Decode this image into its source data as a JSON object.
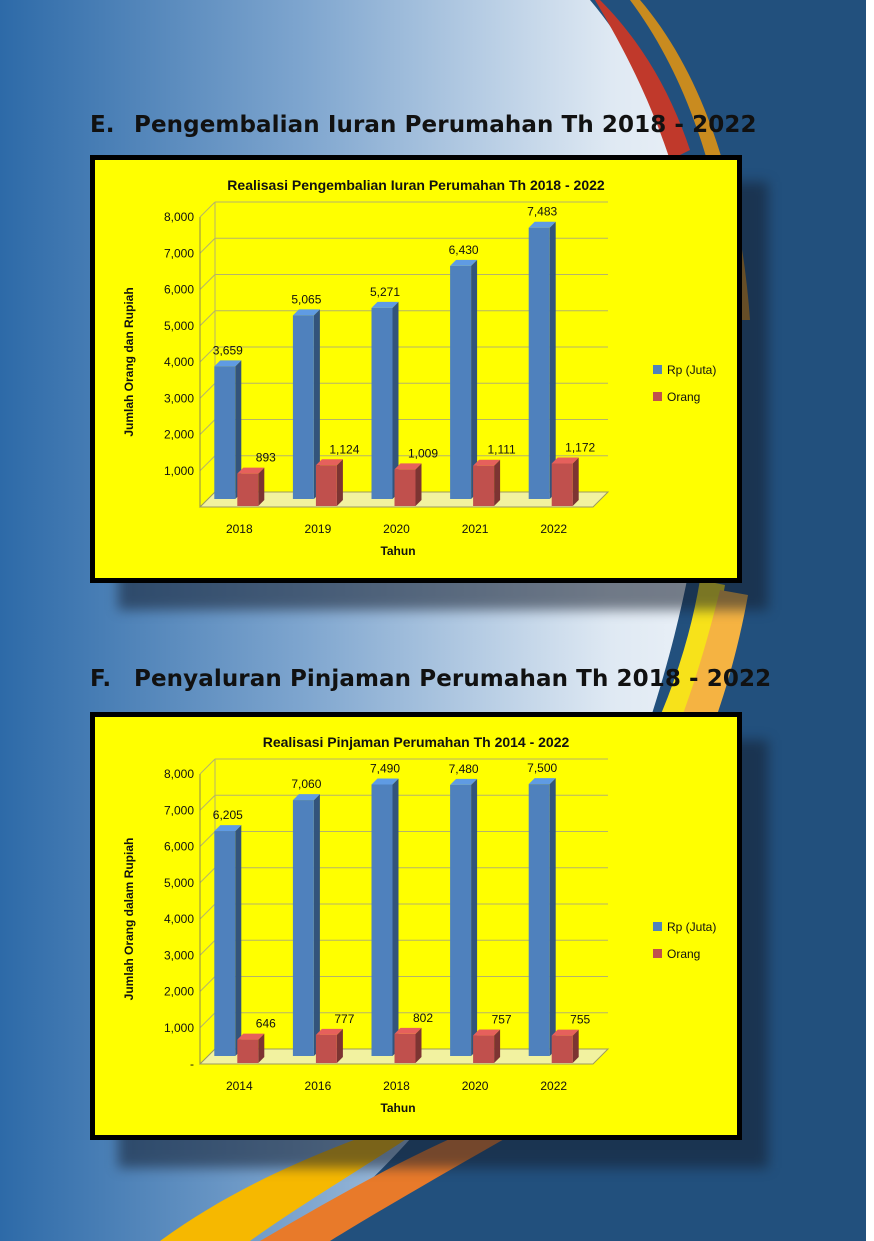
{
  "headings": {
    "e_letter": "E.",
    "e_text": "Pengembalian Iuran Perumahan Th 2018 - 2022",
    "f_letter": "F.",
    "f_text": "Penyaluran Pinjaman Perumahan Th 2018 - 2022"
  },
  "colors": {
    "chart_background": "#ffff00",
    "rp_series": "#4f81bd",
    "orang_series": "#c0504d",
    "gridline": "#b5b36a"
  },
  "chart_data": [
    {
      "type": "bar",
      "title": "Realisasi Pengembalian Iuran Perumahan Th 2018 - 2022",
      "xlabel": "Tahun",
      "ylabel": "Jumlah Orang dan Rupiah",
      "categories": [
        "2018",
        "2019",
        "2020",
        "2021",
        "2022"
      ],
      "series": [
        {
          "name": "Rp (Juta)",
          "values": [
            3659,
            5065,
            5271,
            6430,
            7483
          ],
          "labels": [
            "3,659",
            "5,065",
            "5,271",
            "6,430",
            "7,483"
          ]
        },
        {
          "name": "Orang",
          "values": [
            893,
            1124,
            1009,
            1111,
            1172
          ],
          "labels": [
            "893",
            "1,124",
            "1,009",
            "1,111",
            "1,172"
          ]
        }
      ],
      "ylim": [
        0,
        8000
      ],
      "yticks": [
        0,
        1000,
        2000,
        3000,
        4000,
        5000,
        6000,
        7000,
        8000
      ],
      "ytick_labels": [
        "",
        "1,000",
        "2,000",
        "3,000",
        "4,000",
        "5,000",
        "6,000",
        "7,000",
        "8,000"
      ],
      "grid": true,
      "legend": "right"
    },
    {
      "type": "bar",
      "title": "Realisasi Pinjaman Perumahan Th 2014 - 2022",
      "xlabel": "Tahun",
      "ylabel": "Jumlah Orang dalam Rupiah",
      "categories": [
        "2014",
        "2016",
        "2018",
        "2020",
        "2022"
      ],
      "series": [
        {
          "name": "Rp (Juta)",
          "values": [
            6205,
            7060,
            7490,
            7480,
            7500
          ],
          "labels": [
            "6,205",
            "7,060",
            "7,490",
            "7,480",
            "7,500"
          ]
        },
        {
          "name": "Orang",
          "values": [
            646,
            777,
            802,
            757,
            755
          ],
          "labels": [
            "646",
            "777",
            "802",
            "757",
            "755"
          ]
        }
      ],
      "ylim": [
        0,
        8000
      ],
      "yticks": [
        0,
        1000,
        2000,
        3000,
        4000,
        5000,
        6000,
        7000,
        8000
      ],
      "ytick_labels": [
        "-",
        "1,000",
        "2,000",
        "3,000",
        "4,000",
        "5,000",
        "6,000",
        "7,000",
        "8,000"
      ],
      "grid": true,
      "legend": "right"
    }
  ]
}
